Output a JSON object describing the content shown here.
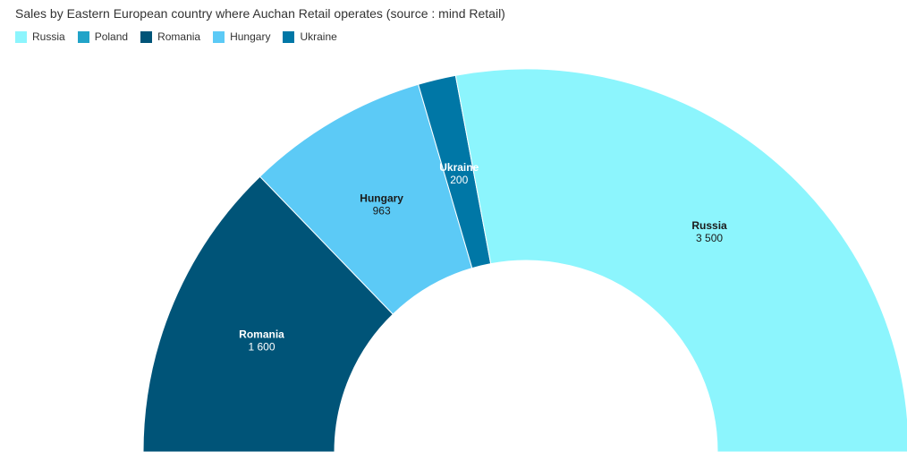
{
  "chart_data": {
    "type": "pie",
    "variant": "half-donut",
    "title": "Sales by Eastern European country where Auchan Retail operates (source : mind Retail)",
    "legend_position": "top-left",
    "categories": [
      "Russia",
      "Poland",
      "Romania",
      "Hungary",
      "Ukraine"
    ],
    "values": [
      3500,
      0,
      1600,
      963,
      200
    ],
    "value_labels": [
      "3 500",
      "0",
      "1 600",
      "963",
      "200"
    ],
    "colors": [
      "#8cf5fd",
      "#21a3c8",
      "#005478",
      "#5ccaf6",
      "#0077a6"
    ],
    "label_text_colors": [
      "#1a1a1a",
      "#1a1a1a",
      "#ffffff",
      "#1a1a1a",
      "#ffffff"
    ]
  }
}
